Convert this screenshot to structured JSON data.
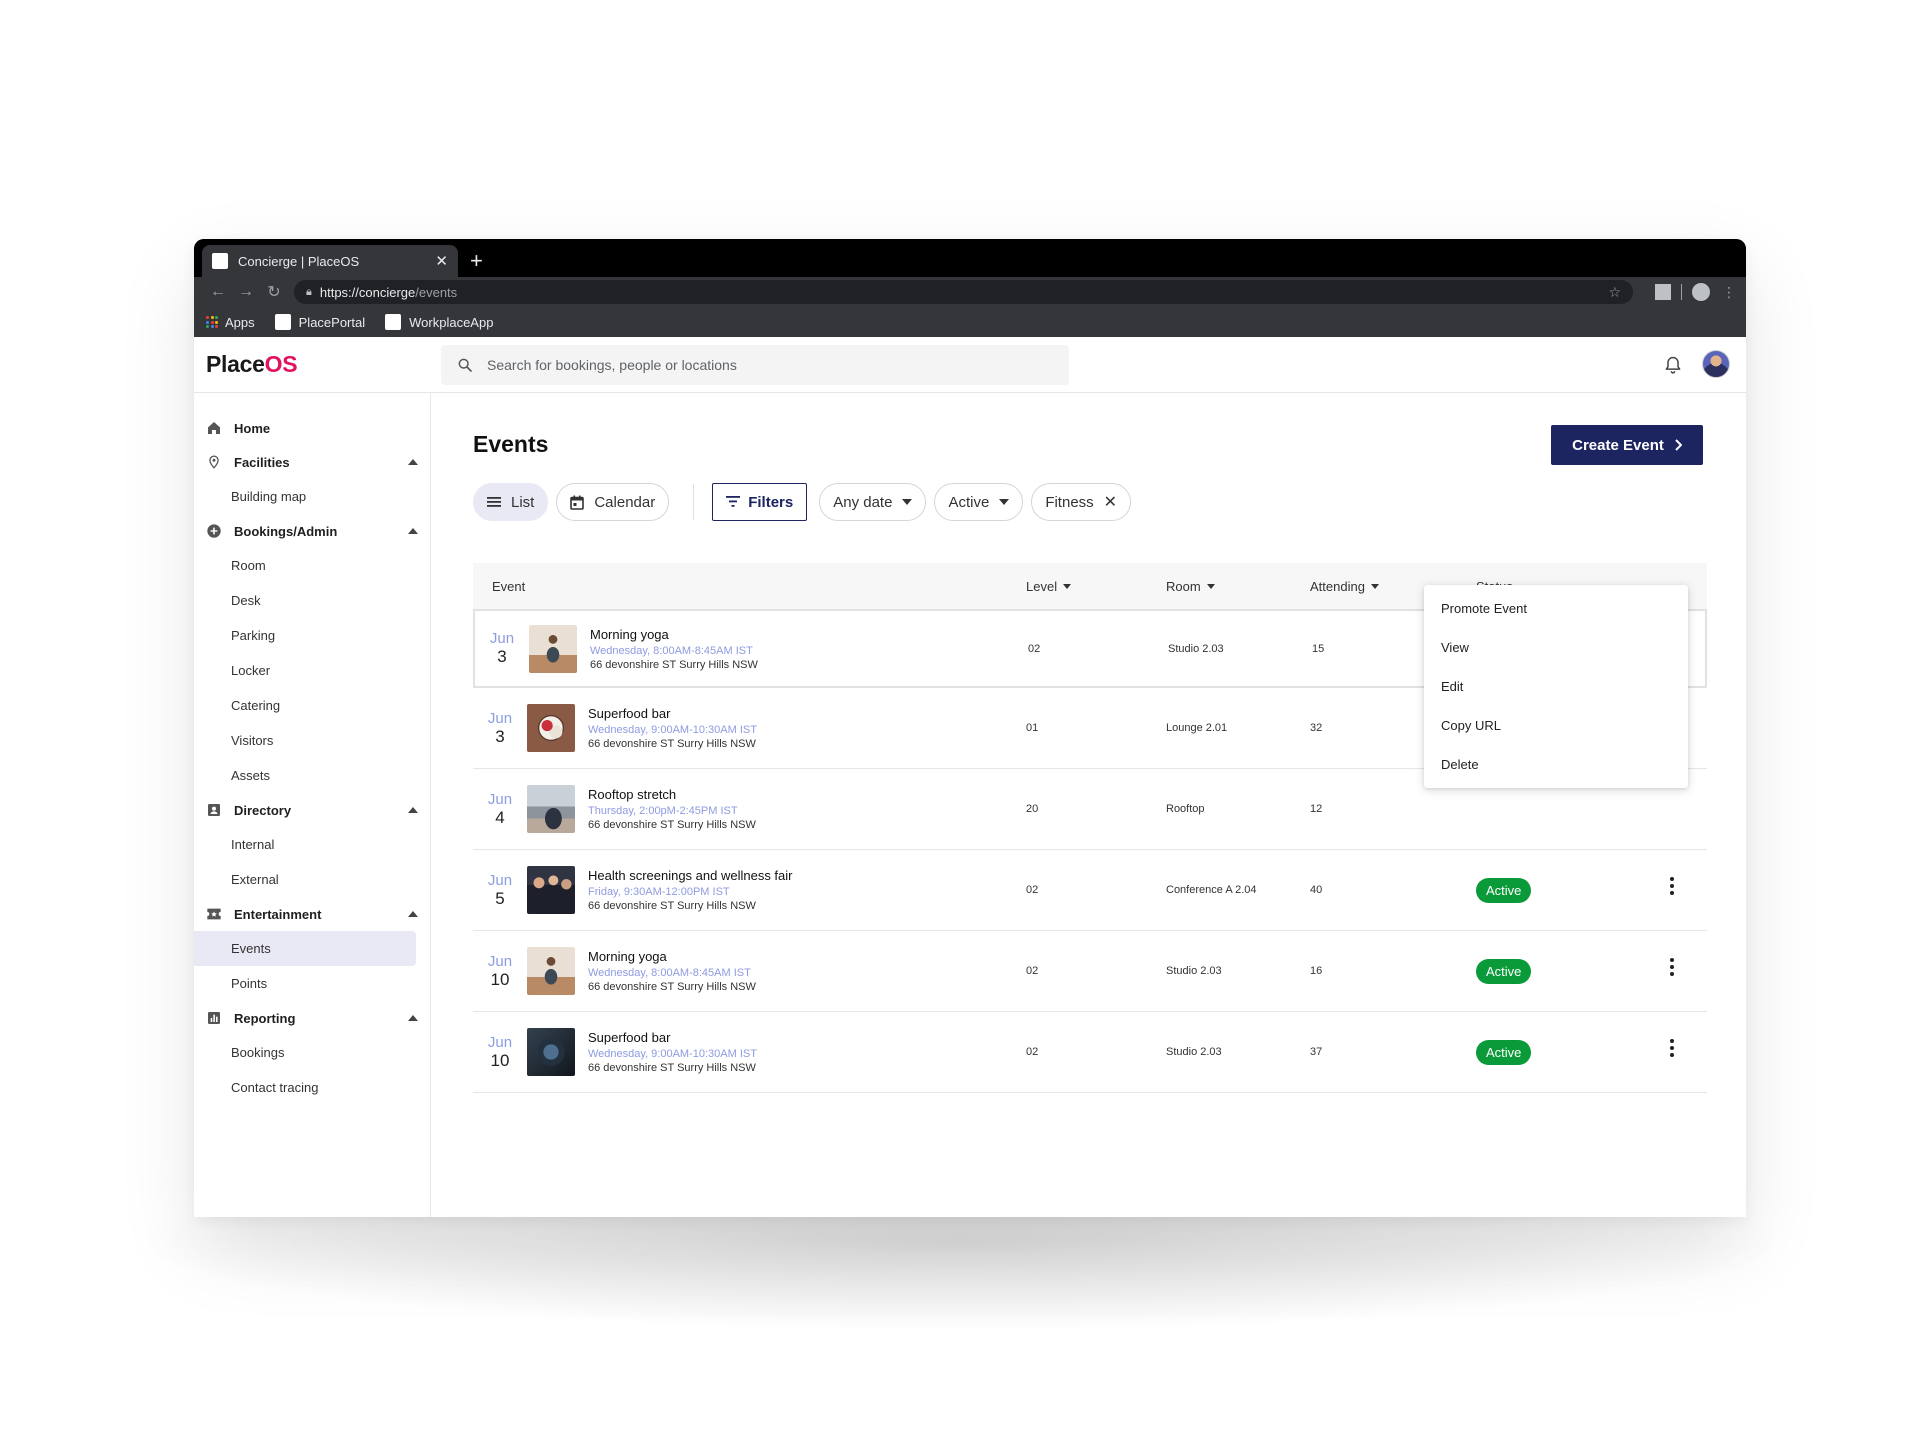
{
  "browser": {
    "tab_title": "Concierge | PlaceOS",
    "new_tab": "+",
    "close_tab": "✕",
    "url_base": "https://concierge",
    "url_path": "/events",
    "bookmarks": [
      {
        "label": "Apps"
      },
      {
        "label": "PlacePortal"
      },
      {
        "label": "WorkplaceApp"
      }
    ]
  },
  "header": {
    "logo_place": "Place",
    "logo_os": "OS",
    "search_placeholder": "Search for bookings, people or locations"
  },
  "sidebar": {
    "home": "Home",
    "facilities": {
      "label": "Facilities",
      "items": [
        "Building map"
      ]
    },
    "bookings": {
      "label": "Bookings/Admin",
      "items": [
        "Room",
        "Desk",
        "Parking",
        "Locker",
        "Catering",
        "Visitors",
        "Assets"
      ]
    },
    "directory": {
      "label": "Directory",
      "items": [
        "Internal",
        "External"
      ]
    },
    "entertainment": {
      "label": "Entertainment",
      "items": [
        "Events",
        "Points"
      ]
    },
    "reporting": {
      "label": "Reporting",
      "items": [
        "Bookings",
        "Contact tracing"
      ]
    }
  },
  "main": {
    "title": "Events",
    "create_label": "Create Event",
    "view_list": "List",
    "view_calendar": "Calendar",
    "filters_label": "Filters",
    "date_filter": "Any date",
    "status_filter": "Active",
    "category_filter": "Fitness"
  },
  "table": {
    "headers": {
      "event": "Event",
      "level": "Level",
      "room": "Room",
      "attending": "Attending",
      "status": "Status"
    },
    "rows": [
      {
        "month": "Jun",
        "day": "3",
        "title": "Morning yoga",
        "time": "Wednesday, 8:00AM-8:45AM IST",
        "location": "66 devonshire ST Surry Hills NSW",
        "level": "02",
        "room": "Studio 2.03",
        "attending": "15",
        "status": ""
      },
      {
        "month": "Jun",
        "day": "3",
        "title": "Superfood bar",
        "time": "Wednesday, 9:00AM-10:30AM IST",
        "location": "66 devonshire ST Surry Hills NSW",
        "level": "01",
        "room": "Lounge 2.01",
        "attending": "32",
        "status": ""
      },
      {
        "month": "Jun",
        "day": "4",
        "title": "Rooftop stretch",
        "time": "Thursday, 2:00pM-2:45PM IST",
        "location": "66 devonshire ST Surry Hills NSW",
        "level": "20",
        "room": "Rooftop",
        "attending": "12",
        "status": ""
      },
      {
        "month": "Jun",
        "day": "5",
        "title": "Health screenings and wellness fair",
        "time": "Friday, 9:30AM-12:00PM IST",
        "location": "66 devonshire ST Surry Hills NSW",
        "level": "02",
        "room": "Conference A 2.04",
        "attending": "40",
        "status": "Active"
      },
      {
        "month": "Jun",
        "day": "10",
        "title": "Morning yoga",
        "time": "Wednesday, 8:00AM-8:45AM IST",
        "location": "66 devonshire ST Surry Hills NSW",
        "level": "02",
        "room": "Studio 2.03",
        "attending": "16",
        "status": "Active"
      },
      {
        "month": "Jun",
        "day": "10",
        "title": "Superfood bar",
        "time": "Wednesday, 9:00AM-10:30AM IST",
        "location": "66 devonshire ST Surry Hills NSW",
        "level": "02",
        "room": "Studio 2.03",
        "attending": "37",
        "status": "Active"
      }
    ]
  },
  "context_menu": {
    "items": [
      "Promote Event",
      "View",
      "Edit",
      "Copy URL",
      "Delete"
    ]
  },
  "colors": {
    "brand_pink": "#e0115f",
    "primary_navy": "#1c2560",
    "active_green": "#0b9a3a",
    "selected_bg": "#e9e8f5",
    "date_month": "#8c9ce0"
  }
}
